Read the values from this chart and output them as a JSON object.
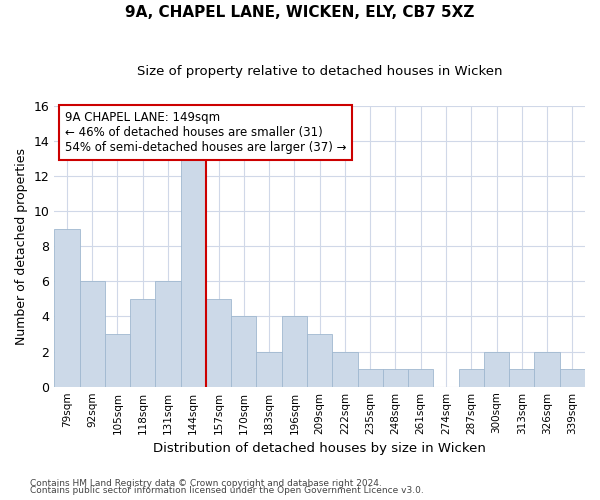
{
  "title1": "9A, CHAPEL LANE, WICKEN, ELY, CB7 5XZ",
  "title2": "Size of property relative to detached houses in Wicken",
  "xlabel": "Distribution of detached houses by size in Wicken",
  "ylabel": "Number of detached properties",
  "categories": [
    "79sqm",
    "92sqm",
    "105sqm",
    "118sqm",
    "131sqm",
    "144sqm",
    "157sqm",
    "170sqm",
    "183sqm",
    "196sqm",
    "209sqm",
    "222sqm",
    "235sqm",
    "248sqm",
    "261sqm",
    "274sqm",
    "287sqm",
    "300sqm",
    "313sqm",
    "326sqm",
    "339sqm"
  ],
  "values": [
    9,
    6,
    3,
    5,
    6,
    13,
    5,
    4,
    2,
    4,
    3,
    2,
    1,
    1,
    1,
    0,
    1,
    2,
    1,
    2,
    1
  ],
  "bar_color": "#ccd9e8",
  "bar_edgecolor": "#a0b8d0",
  "vline_x": 5.5,
  "vline_color": "#cc0000",
  "annotation_text": "9A CHAPEL LANE: 149sqm\n← 46% of detached houses are smaller (31)\n54% of semi-detached houses are larger (37) →",
  "annotation_box_color": "#cc0000",
  "ylim": [
    0,
    16
  ],
  "yticks": [
    0,
    2,
    4,
    6,
    8,
    10,
    12,
    14,
    16
  ],
  "footer1": "Contains HM Land Registry data © Crown copyright and database right 2024.",
  "footer2": "Contains public sector information licensed under the Open Government Licence v3.0.",
  "bg_color": "#ffffff",
  "plot_bg_color": "#ffffff",
  "grid_color": "#d0d8e8"
}
